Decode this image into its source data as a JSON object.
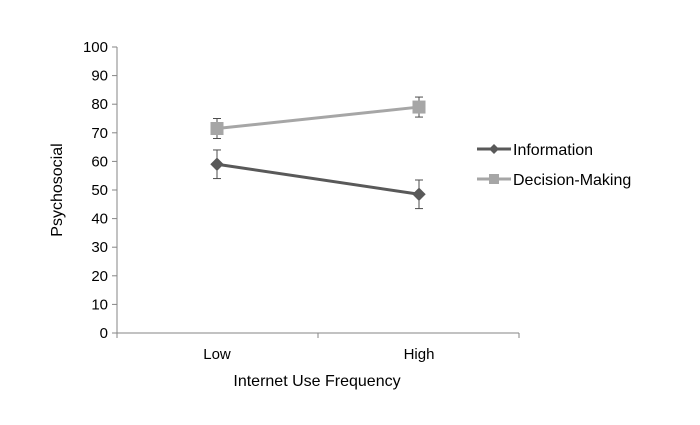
{
  "chart_data": {
    "type": "line",
    "title": "",
    "xlabel": "Internet Use Frequency",
    "ylabel": "Psychosocial",
    "categories": [
      "Low",
      "High"
    ],
    "ylim": [
      0,
      100
    ],
    "yticks": [
      0,
      10,
      20,
      30,
      40,
      50,
      60,
      70,
      80,
      90,
      100
    ],
    "ytick_labels": [
      "0",
      "10",
      "20",
      "30",
      "40",
      "50",
      "60",
      "70",
      "80",
      "90",
      "100"
    ],
    "grid": false,
    "legend_position": "right",
    "series": [
      {
        "name": "Information",
        "values": [
          59,
          48.5
        ],
        "error_low": [
          54,
          43.5
        ],
        "error_high": [
          64,
          53.5
        ],
        "marker": "diamond",
        "color": "#595959"
      },
      {
        "name": "Decision-Making",
        "values": [
          71.5,
          79
        ],
        "error_low": [
          68,
          75.5
        ],
        "error_high": [
          75,
          82.5
        ],
        "marker": "square",
        "color": "#a6a6a6"
      }
    ]
  }
}
